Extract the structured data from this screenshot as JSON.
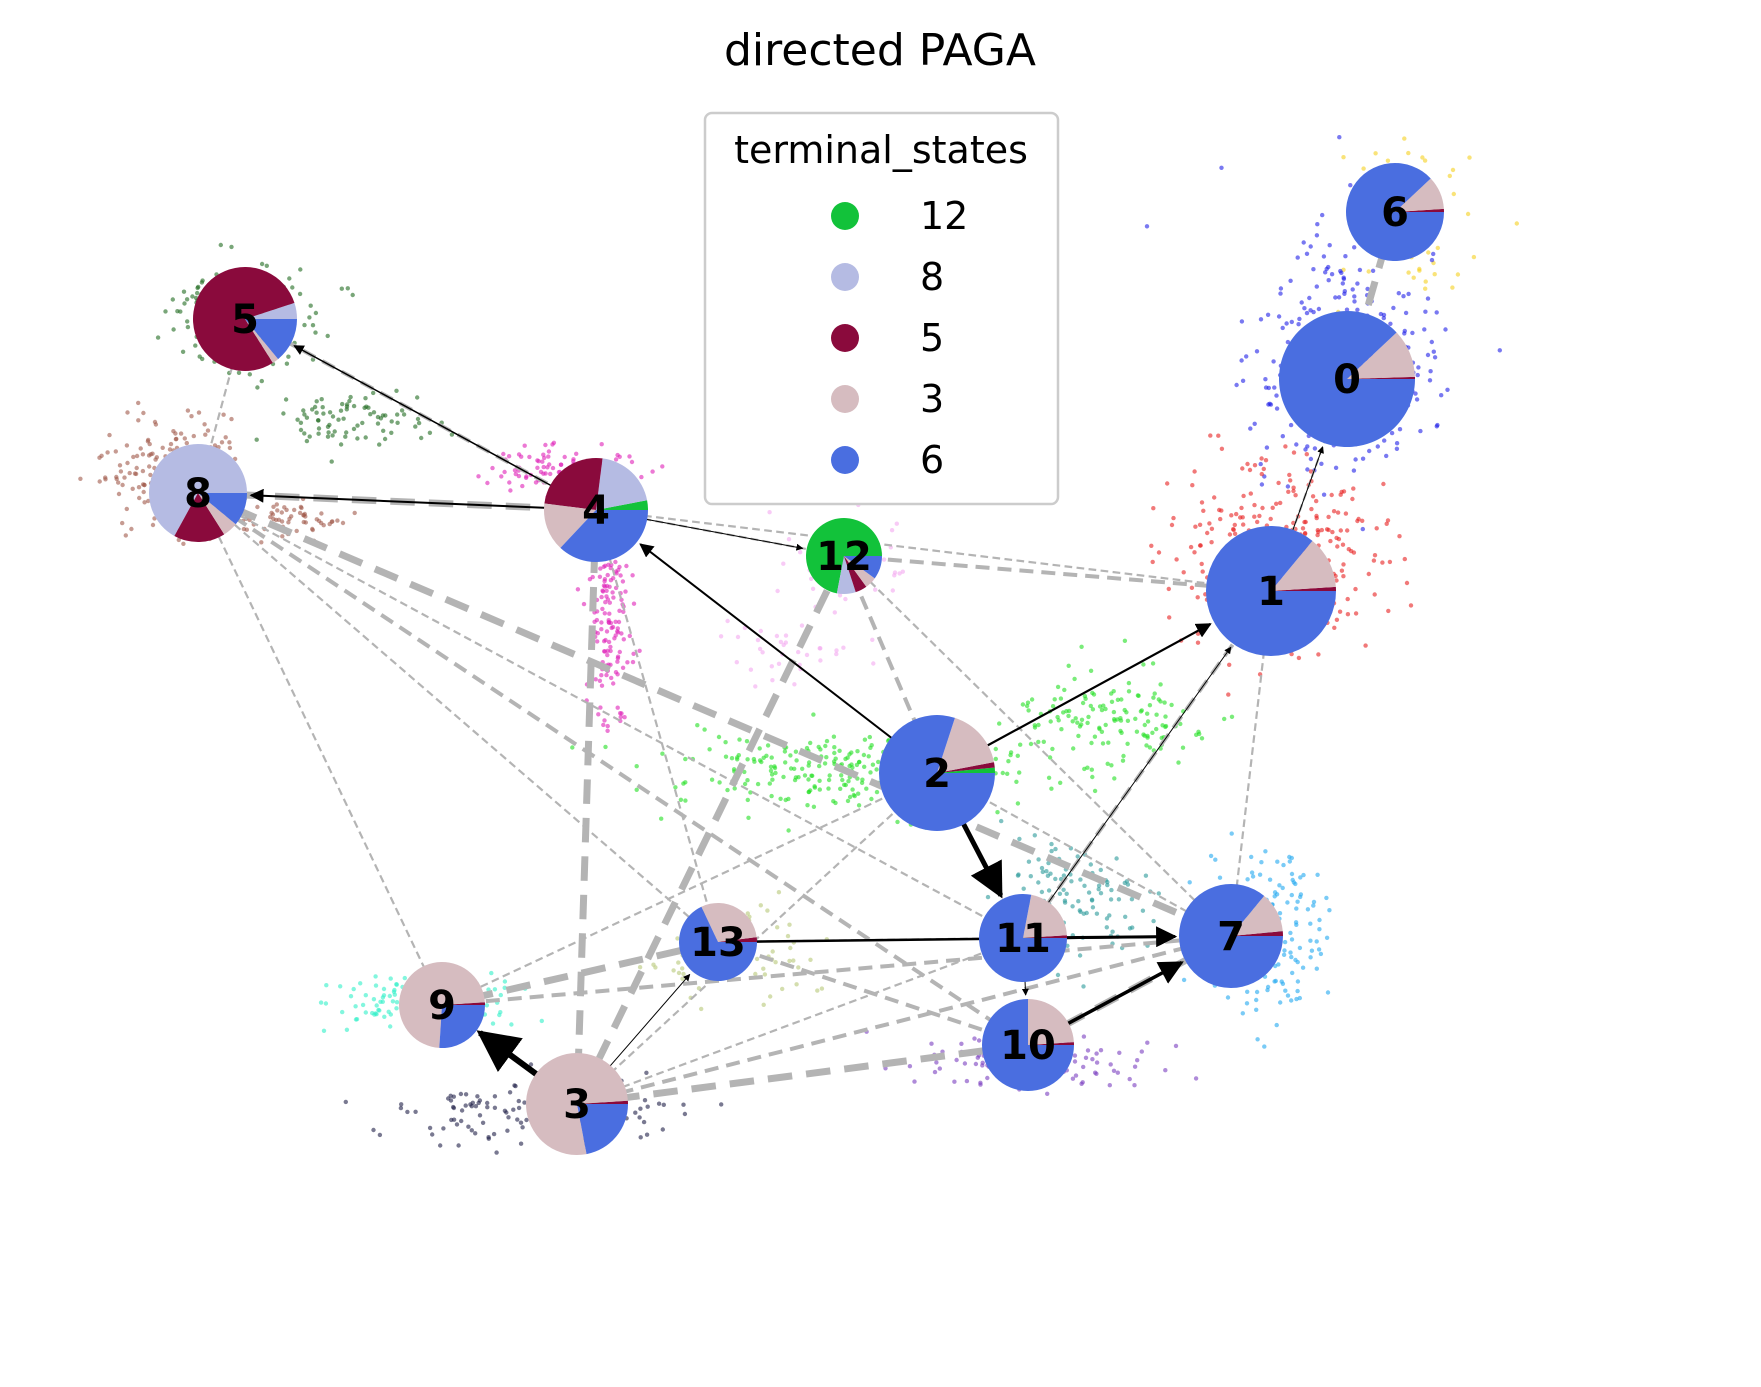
{
  "title": "directed PAGA",
  "legend": {
    "title": "terminal_states",
    "items": [
      {
        "label": "12",
        "color": "#12c23a"
      },
      {
        "label": "8",
        "color": "#b5bbe3"
      },
      {
        "label": "5",
        "color": "#8a0a3c"
      },
      {
        "label": "3",
        "color": "#d6bcc0"
      },
      {
        "label": "6",
        "color": "#4a6ee0"
      }
    ]
  },
  "nodes": [
    {
      "id": "0",
      "fractions": {
        "6": 0.88,
        "3": 0.115,
        "5": 0.005
      }
    },
    {
      "id": "1",
      "fractions": {
        "6": 0.86,
        "3": 0.13,
        "5": 0.01
      }
    },
    {
      "id": "2",
      "fractions": {
        "6": 0.8,
        "3": 0.17,
        "5": 0.015,
        "12": 0.015
      }
    },
    {
      "id": "3",
      "fractions": {
        "6": 0.22,
        "3": 0.77,
        "5": 0.01
      }
    },
    {
      "id": "4",
      "fractions": {
        "6": 0.37,
        "3": 0.15,
        "5": 0.25,
        "8": 0.2,
        "12": 0.03
      }
    },
    {
      "id": "5",
      "fractions": {
        "5": 0.79,
        "3": 0.02,
        "8": 0.05,
        "6": 0.14
      }
    },
    {
      "id": "6",
      "fractions": {
        "6": 0.88,
        "3": 0.11,
        "5": 0.01
      }
    },
    {
      "id": "7",
      "fractions": {
        "6": 0.86,
        "3": 0.125,
        "5": 0.015
      }
    },
    {
      "id": "8",
      "fractions": {
        "8": 0.67,
        "5": 0.17,
        "3": 0.05,
        "6": 0.11
      }
    },
    {
      "id": "9",
      "fractions": {
        "3": 0.73,
        "6": 0.26,
        "5": 0.01
      }
    },
    {
      "id": "10",
      "fractions": {
        "6": 0.75,
        "3": 0.24,
        "5": 0.01
      }
    },
    {
      "id": "11",
      "fractions": {
        "6": 0.78,
        "3": 0.21,
        "5": 0.01
      }
    },
    {
      "id": "12",
      "fractions": {
        "12": 0.72,
        "6": 0.1,
        "3": 0.05,
        "5": 0.05,
        "8": 0.08
      }
    },
    {
      "id": "13",
      "fractions": {
        "6": 0.68,
        "3": 0.3,
        "5": 0.02
      }
    }
  ],
  "arrows": [
    {
      "from": "2",
      "to": "1"
    },
    {
      "from": "2",
      "to": "4"
    },
    {
      "from": "2",
      "to": "11"
    },
    {
      "from": "4",
      "to": "5"
    },
    {
      "from": "4",
      "to": "8"
    },
    {
      "from": "4",
      "to": "12"
    },
    {
      "from": "1",
      "to": "0"
    },
    {
      "from": "13",
      "to": "7"
    },
    {
      "from": "11",
      "to": "7"
    },
    {
      "from": "10",
      "to": "7"
    },
    {
      "from": "3",
      "to": "13"
    },
    {
      "from": "3",
      "to": "9"
    },
    {
      "from": "11",
      "to": "10"
    },
    {
      "from": "11",
      "to": "1"
    }
  ],
  "connections": [
    {
      "from": "0",
      "to": "6"
    },
    {
      "from": "0",
      "to": "1"
    },
    {
      "from": "5",
      "to": "8"
    },
    {
      "from": "5",
      "to": "4"
    },
    {
      "from": "8",
      "to": "4"
    },
    {
      "from": "4",
      "to": "12"
    },
    {
      "from": "1",
      "to": "11"
    },
    {
      "from": "1",
      "to": "7"
    },
    {
      "from": "13",
      "to": "9"
    },
    {
      "from": "13",
      "to": "10"
    },
    {
      "from": "13",
      "to": "11"
    },
    {
      "from": "11",
      "to": "7"
    },
    {
      "from": "10",
      "to": "7"
    },
    {
      "from": "8",
      "to": "13"
    },
    {
      "from": "8",
      "to": "11"
    },
    {
      "from": "8",
      "to": "10"
    },
    {
      "from": "8",
      "to": "7"
    },
    {
      "from": "8",
      "to": "9"
    },
    {
      "from": "12",
      "to": "2"
    },
    {
      "from": "12",
      "to": "7"
    },
    {
      "from": "12",
      "to": "3"
    },
    {
      "from": "12",
      "to": "1"
    },
    {
      "from": "4",
      "to": "1"
    },
    {
      "from": "4",
      "to": "13"
    },
    {
      "from": "4",
      "to": "3"
    },
    {
      "from": "2",
      "to": "9"
    },
    {
      "from": "2",
      "to": "3"
    },
    {
      "from": "3",
      "to": "7"
    },
    {
      "from": "3",
      "to": "10"
    },
    {
      "from": "3",
      "to": "11"
    },
    {
      "from": "9",
      "to": "7"
    },
    {
      "from": "2",
      "to": "7"
    }
  ],
  "cell_groups": [
    {
      "cluster": "6",
      "color": "#f5d020"
    },
    {
      "cluster": "0",
      "color": "#2020e8"
    },
    {
      "cluster": "1",
      "color": "#e82020"
    },
    {
      "cluster": "2",
      "color": "#22e022"
    },
    {
      "cluster": "4",
      "color": "#e020b8"
    },
    {
      "cluster": "5",
      "color": "#1f6b1f"
    },
    {
      "cluster": "8",
      "color": "#a0584a"
    },
    {
      "cluster": "12",
      "color": "#f4a8f0"
    },
    {
      "cluster": "11",
      "color": "#2a9a9a"
    },
    {
      "cluster": "7",
      "color": "#22a8f0"
    },
    {
      "cluster": "10",
      "color": "#7a3ec0"
    },
    {
      "cluster": "9",
      "color": "#30f0c8"
    },
    {
      "cluster": "3",
      "color": "#202048"
    },
    {
      "cluster": "13",
      "color": "#b8c878"
    }
  ]
}
